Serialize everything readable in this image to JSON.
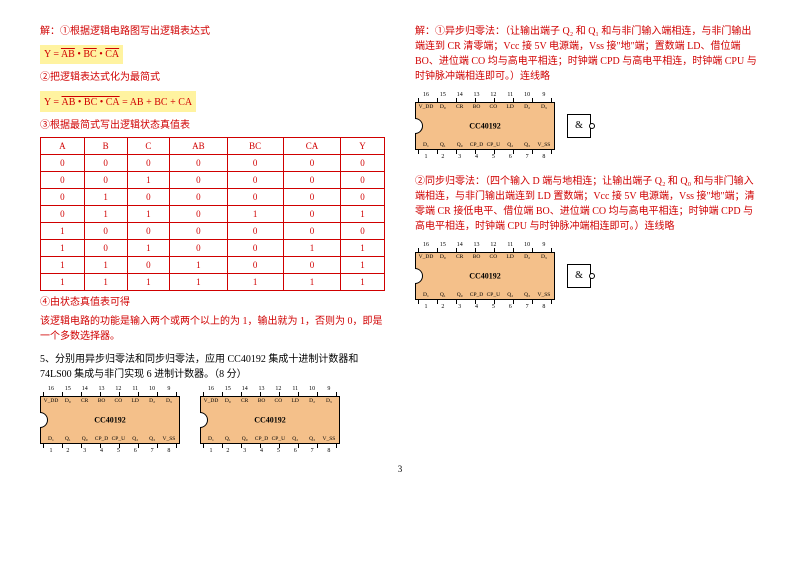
{
  "left": {
    "line1": "解：①根据逻辑电路图写出逻辑表达式",
    "formula1_a": "Y = ",
    "formula1_b": "AB",
    "formula1_c": " • ",
    "formula1_d": "BC",
    "formula1_e": " • ",
    "formula1_f": "CA",
    "line2": "②把逻辑表达式化为最简式",
    "formula2_a": "Y = ",
    "formula2_b": "AB • BC • CA",
    "formula2_c": " = AB + BC + CA",
    "line3": "③根据最简式写出逻辑状态真值表",
    "table": {
      "headers": [
        "A",
        "B",
        "C",
        "AB",
        "BC",
        "CA",
        "Y"
      ],
      "rows": [
        [
          "0",
          "0",
          "0",
          "0",
          "0",
          "0",
          "0"
        ],
        [
          "0",
          "0",
          "1",
          "0",
          "0",
          "0",
          "0"
        ],
        [
          "0",
          "1",
          "0",
          "0",
          "0",
          "0",
          "0"
        ],
        [
          "0",
          "1",
          "1",
          "0",
          "1",
          "0",
          "1"
        ],
        [
          "1",
          "0",
          "0",
          "0",
          "0",
          "0",
          "0"
        ],
        [
          "1",
          "0",
          "1",
          "0",
          "0",
          "1",
          "1"
        ],
        [
          "1",
          "1",
          "0",
          "1",
          "0",
          "0",
          "1"
        ],
        [
          "1",
          "1",
          "1",
          "1",
          "1",
          "1",
          "1"
        ]
      ]
    },
    "line4": "④由状态真值表可得",
    "line5": "该逻辑电路的功能是输入两个或两个以上的为 1，输出就为 1，否则为 0，即是一个多数选择器。",
    "q5": "5、分别用异步归零法和同步归零法，应用 CC40192 集成十进制计数器和 74LS00 集成与非门实现 6 进制计数器。（8 分）"
  },
  "right": {
    "sol1": "解：①异步归零法：（让输出端子 Q₂ 和 Q₁ 和与非门输入端相连，与非门输出端连到 CR 清零端；Vcc 接 5V 电源端，Vss 接\"地\"端；置数端 LD、借位端 BO、进位端 CO 均与高电平相连；时钟端 CPD 与高电平相连，时钟端 CPU 与时钟脉冲端相连即可。）连线略",
    "sol2": "②同步归零法：（四个输入 D 端与地相连；让输出端子 Q₂ 和 Q₀ 和与非门输入端相连，与非门输出端连到 LD 置数端；Vcc 接 5V 电源端，Vss 接\"地\"端；清零端 CR 接低电平、借位端 BO、进位端 CO 均与高电平相连；时钟端 CPD 与高电平相连，时钟端 CPU 与时钟脉冲端相连即可。）连线略"
  },
  "chip": {
    "name": "CC40192",
    "pins_top": [
      "16",
      "15",
      "14",
      "13",
      "12",
      "11",
      "10",
      "9"
    ],
    "pins_bot": [
      "1",
      "2",
      "3",
      "4",
      "5",
      "6",
      "7",
      "8"
    ],
    "labels_top": [
      "V_DD",
      "D₀",
      "CR",
      "BO",
      "CO",
      "LD",
      "D₂",
      "D₃"
    ],
    "labels_bot": [
      "D₁",
      "Q₁",
      "Q₀",
      "CP_D",
      "CP_U",
      "Q₂",
      "Q₃",
      "V_SS"
    ]
  },
  "gate": "&",
  "page": "3",
  "colors": {
    "red": "#d00000",
    "highlight": "#fff3a0",
    "chip_fill": "#f4c08a"
  }
}
